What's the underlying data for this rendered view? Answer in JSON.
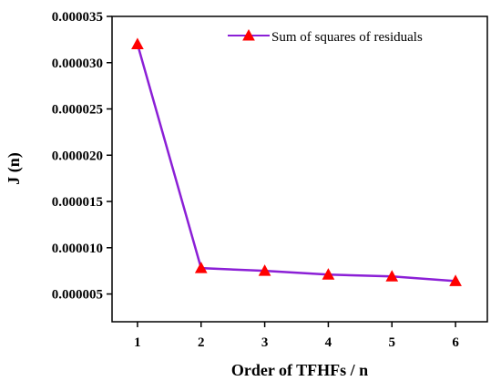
{
  "chart_data": {
    "type": "line",
    "title": "",
    "xlabel": "Order of TFHFs / n",
    "ylabel": "J (n)",
    "x": [
      1,
      2,
      3,
      4,
      5,
      6
    ],
    "xticks": [
      "1",
      "2",
      "3",
      "4",
      "5",
      "6"
    ],
    "xlim": [
      0.6,
      6.5
    ],
    "yticks": [
      "0.000005",
      "0.000010",
      "0.000015",
      "0.000020",
      "0.000025",
      "0.000030",
      "0.000035"
    ],
    "ytick_values": [
      5e-06,
      1e-05,
      1.5e-05,
      2e-05,
      2.5e-05,
      3e-05,
      3.5e-05
    ],
    "ylim": [
      2e-06,
      3.5e-05
    ],
    "grid": false,
    "legend_position": "top-right",
    "series": [
      {
        "name": "Sum of squares of residuals",
        "values": [
          3.2e-05,
          7.8e-06,
          7.5e-06,
          7.1e-06,
          6.9e-06,
          6.4e-06
        ],
        "line_color": "#8b1fd6",
        "marker": "triangle",
        "marker_color": "#ff0000"
      }
    ]
  }
}
